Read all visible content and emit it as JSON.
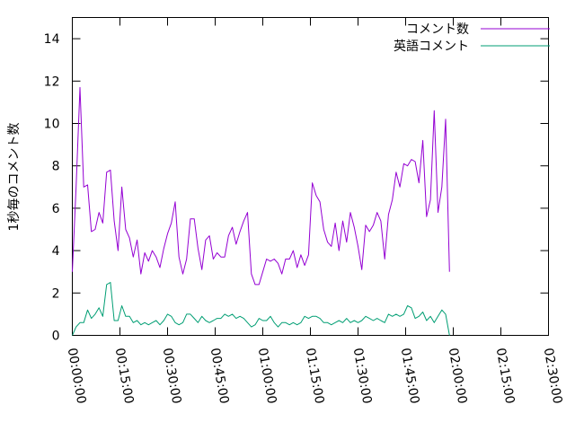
{
  "chart_data": {
    "type": "line",
    "ylabel": "1秒毎のコメント数",
    "xlabel": "",
    "title": "",
    "ylim": [
      0,
      15
    ],
    "xlim_minutes": [
      0,
      150
    ],
    "y_ticks": [
      {
        "value": 0,
        "label": "0"
      },
      {
        "value": 2,
        "label": "2"
      },
      {
        "value": 4,
        "label": "4"
      },
      {
        "value": 6,
        "label": "6"
      },
      {
        "value": 8,
        "label": "8"
      },
      {
        "value": 10,
        "label": "10"
      },
      {
        "value": 12,
        "label": "12"
      },
      {
        "value": 14,
        "label": "14"
      }
    ],
    "x_ticks": [
      {
        "value": 0,
        "label": "00:00:00"
      },
      {
        "value": 15,
        "label": "00:15:00"
      },
      {
        "value": 30,
        "label": "00:30:00"
      },
      {
        "value": 45,
        "label": "00:45:00"
      },
      {
        "value": 60,
        "label": "01:00:00"
      },
      {
        "value": 75,
        "label": "01:15:00"
      },
      {
        "value": 90,
        "label": "01:30:00"
      },
      {
        "value": 105,
        "label": "01:45:00"
      },
      {
        "value": 120,
        "label": "02:00:00"
      },
      {
        "value": 135,
        "label": "02:15:00"
      },
      {
        "value": 150,
        "label": "02:30:00"
      }
    ],
    "legend_position": "top-right",
    "series": [
      {
        "name": "コメント数",
        "color": "#9400d3",
        "points": [
          [
            0.0,
            3.0
          ],
          [
            1.2,
            7.0
          ],
          [
            2.4,
            11.7
          ],
          [
            3.6,
            7.0
          ],
          [
            4.8,
            7.1
          ],
          [
            6.0,
            4.9
          ],
          [
            7.2,
            5.0
          ],
          [
            8.4,
            5.8
          ],
          [
            9.6,
            5.3
          ],
          [
            10.8,
            7.7
          ],
          [
            12.0,
            7.8
          ],
          [
            13.2,
            5.4
          ],
          [
            14.4,
            4.0
          ],
          [
            15.6,
            7.0
          ],
          [
            16.8,
            5.0
          ],
          [
            18.0,
            4.6
          ],
          [
            19.2,
            3.7
          ],
          [
            20.4,
            4.5
          ],
          [
            21.6,
            2.9
          ],
          [
            22.8,
            3.9
          ],
          [
            24.0,
            3.5
          ],
          [
            25.2,
            4.0
          ],
          [
            26.4,
            3.7
          ],
          [
            27.6,
            3.2
          ],
          [
            28.8,
            4.1
          ],
          [
            30.0,
            4.8
          ],
          [
            31.2,
            5.3
          ],
          [
            32.4,
            6.3
          ],
          [
            33.6,
            3.7
          ],
          [
            34.8,
            2.9
          ],
          [
            36.0,
            3.6
          ],
          [
            37.2,
            5.5
          ],
          [
            38.4,
            5.5
          ],
          [
            39.6,
            4.1
          ],
          [
            40.8,
            3.1
          ],
          [
            42.0,
            4.5
          ],
          [
            43.2,
            4.7
          ],
          [
            44.4,
            3.6
          ],
          [
            45.6,
            3.9
          ],
          [
            46.8,
            3.7
          ],
          [
            48.0,
            3.7
          ],
          [
            49.2,
            4.7
          ],
          [
            50.4,
            5.1
          ],
          [
            51.6,
            4.3
          ],
          [
            52.8,
            4.9
          ],
          [
            54.0,
            5.4
          ],
          [
            55.2,
            5.8
          ],
          [
            56.4,
            2.9
          ],
          [
            57.6,
            2.4
          ],
          [
            58.8,
            2.4
          ],
          [
            60.0,
            3.0
          ],
          [
            61.2,
            3.6
          ],
          [
            62.4,
            3.5
          ],
          [
            63.6,
            3.6
          ],
          [
            64.8,
            3.4
          ],
          [
            66.0,
            2.9
          ],
          [
            67.2,
            3.6
          ],
          [
            68.4,
            3.6
          ],
          [
            69.6,
            4.0
          ],
          [
            70.8,
            3.2
          ],
          [
            72.0,
            3.8
          ],
          [
            73.2,
            3.3
          ],
          [
            74.4,
            3.8
          ],
          [
            75.6,
            7.2
          ],
          [
            76.8,
            6.6
          ],
          [
            78.0,
            6.3
          ],
          [
            79.2,
            5.0
          ],
          [
            80.4,
            4.4
          ],
          [
            81.6,
            4.2
          ],
          [
            82.8,
            5.3
          ],
          [
            84.0,
            4.0
          ],
          [
            85.2,
            5.4
          ],
          [
            86.4,
            4.4
          ],
          [
            87.6,
            5.8
          ],
          [
            88.8,
            5.1
          ],
          [
            90.0,
            4.2
          ],
          [
            91.2,
            3.1
          ],
          [
            92.4,
            5.2
          ],
          [
            93.6,
            4.9
          ],
          [
            94.8,
            5.2
          ],
          [
            96.0,
            5.8
          ],
          [
            97.2,
            5.4
          ],
          [
            98.4,
            3.6
          ],
          [
            99.6,
            5.7
          ],
          [
            100.8,
            6.4
          ],
          [
            102.0,
            7.7
          ],
          [
            103.2,
            7.0
          ],
          [
            104.4,
            8.1
          ],
          [
            105.6,
            8.0
          ],
          [
            106.8,
            8.3
          ],
          [
            108.0,
            8.2
          ],
          [
            109.2,
            7.2
          ],
          [
            110.4,
            9.2
          ],
          [
            111.6,
            5.6
          ],
          [
            112.8,
            6.4
          ],
          [
            114.0,
            10.6
          ],
          [
            115.2,
            5.8
          ],
          [
            116.4,
            7.0
          ],
          [
            117.6,
            10.2
          ],
          [
            118.8,
            3.0
          ]
        ]
      },
      {
        "name": "英語コメント",
        "color": "#009e73",
        "points": [
          [
            0.0,
            0.0
          ],
          [
            1.2,
            0.4
          ],
          [
            2.4,
            0.6
          ],
          [
            3.6,
            0.6
          ],
          [
            4.8,
            1.2
          ],
          [
            6.0,
            0.8
          ],
          [
            7.2,
            1.0
          ],
          [
            8.4,
            1.3
          ],
          [
            9.6,
            0.9
          ],
          [
            10.8,
            2.4
          ],
          [
            12.0,
            2.5
          ],
          [
            13.2,
            0.7
          ],
          [
            14.4,
            0.7
          ],
          [
            15.6,
            1.4
          ],
          [
            16.8,
            0.9
          ],
          [
            18.0,
            0.9
          ],
          [
            19.2,
            0.6
          ],
          [
            20.4,
            0.7
          ],
          [
            21.6,
            0.5
          ],
          [
            22.8,
            0.6
          ],
          [
            24.0,
            0.5
          ],
          [
            25.2,
            0.6
          ],
          [
            26.4,
            0.7
          ],
          [
            27.6,
            0.5
          ],
          [
            28.8,
            0.7
          ],
          [
            30.0,
            1.0
          ],
          [
            31.2,
            0.9
          ],
          [
            32.4,
            0.6
          ],
          [
            33.6,
            0.5
          ],
          [
            34.8,
            0.6
          ],
          [
            36.0,
            1.0
          ],
          [
            37.2,
            1.0
          ],
          [
            38.4,
            0.8
          ],
          [
            39.6,
            0.6
          ],
          [
            40.8,
            0.9
          ],
          [
            42.0,
            0.7
          ],
          [
            43.2,
            0.6
          ],
          [
            44.4,
            0.7
          ],
          [
            45.6,
            0.8
          ],
          [
            46.8,
            0.8
          ],
          [
            48.0,
            1.0
          ],
          [
            49.2,
            0.9
          ],
          [
            50.4,
            1.0
          ],
          [
            51.6,
            0.8
          ],
          [
            52.8,
            0.9
          ],
          [
            54.0,
            0.8
          ],
          [
            55.2,
            0.6
          ],
          [
            56.4,
            0.4
          ],
          [
            57.6,
            0.5
          ],
          [
            58.8,
            0.8
          ],
          [
            60.0,
            0.7
          ],
          [
            61.2,
            0.7
          ],
          [
            62.4,
            0.9
          ],
          [
            63.6,
            0.6
          ],
          [
            64.8,
            0.4
          ],
          [
            66.0,
            0.6
          ],
          [
            67.2,
            0.6
          ],
          [
            68.4,
            0.5
          ],
          [
            69.6,
            0.6
          ],
          [
            70.8,
            0.5
          ],
          [
            72.0,
            0.6
          ],
          [
            73.2,
            0.9
          ],
          [
            74.4,
            0.8
          ],
          [
            75.6,
            0.9
          ],
          [
            76.8,
            0.9
          ],
          [
            78.0,
            0.8
          ],
          [
            79.2,
            0.6
          ],
          [
            80.4,
            0.6
          ],
          [
            81.6,
            0.5
          ],
          [
            82.8,
            0.6
          ],
          [
            84.0,
            0.7
          ],
          [
            85.2,
            0.6
          ],
          [
            86.4,
            0.8
          ],
          [
            87.6,
            0.6
          ],
          [
            88.8,
            0.7
          ],
          [
            90.0,
            0.6
          ],
          [
            91.2,
            0.7
          ],
          [
            92.4,
            0.9
          ],
          [
            93.6,
            0.8
          ],
          [
            94.8,
            0.7
          ],
          [
            96.0,
            0.8
          ],
          [
            97.2,
            0.7
          ],
          [
            98.4,
            0.6
          ],
          [
            99.6,
            1.0
          ],
          [
            100.8,
            0.9
          ],
          [
            102.0,
            1.0
          ],
          [
            103.2,
            0.9
          ],
          [
            104.4,
            1.0
          ],
          [
            105.6,
            1.4
          ],
          [
            106.8,
            1.3
          ],
          [
            108.0,
            0.8
          ],
          [
            109.2,
            0.9
          ],
          [
            110.4,
            1.1
          ],
          [
            111.6,
            0.7
          ],
          [
            112.8,
            0.9
          ],
          [
            114.0,
            0.6
          ],
          [
            115.2,
            0.9
          ],
          [
            116.4,
            1.2
          ],
          [
            117.6,
            1.0
          ],
          [
            118.8,
            0.0
          ]
        ]
      }
    ]
  }
}
